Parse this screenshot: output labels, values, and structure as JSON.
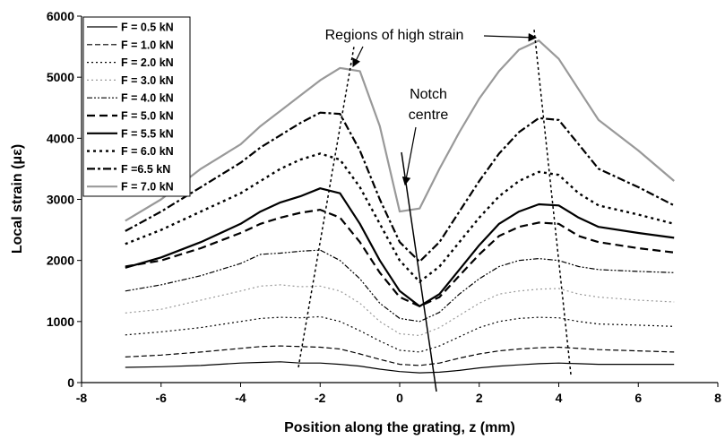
{
  "chart_data": {
    "type": "line",
    "xlabel": "Position along the grating, z (mm)",
    "ylabel": "Local strain (με)",
    "annotations": [
      "Regions of high strain",
      "Notch",
      "centre"
    ],
    "x": [
      -6.9,
      -6,
      -5,
      -4,
      -3.5,
      -3,
      -2.5,
      -2,
      -1.5,
      -1,
      -0.5,
      0,
      0.5,
      1,
      1.5,
      2,
      2.5,
      3,
      3.5,
      4,
      4.5,
      5,
      6,
      6.9
    ],
    "xlim": [
      -8,
      8
    ],
    "xticks": [
      -8,
      -6,
      -4,
      -2,
      0,
      2,
      4,
      6,
      8
    ],
    "ylim": [
      0,
      6000
    ],
    "yticks": [
      0,
      1000,
      2000,
      3000,
      4000,
      5000,
      6000
    ],
    "legend": "upper left",
    "series": [
      {
        "name": "F = 0.5 kN",
        "color": "#000000",
        "linestyle": "solid",
        "values": [
          250,
          260,
          280,
          320,
          330,
          340,
          320,
          320,
          300,
          270,
          220,
          180,
          160,
          170,
          200,
          240,
          270,
          290,
          310,
          320,
          310,
          300,
          300,
          300
        ]
      },
      {
        "name": "F = 1.0 kN",
        "color": "#000000",
        "linestyle": "dashed",
        "values": [
          420,
          450,
          500,
          560,
          590,
          600,
          590,
          580,
          550,
          470,
          380,
          300,
          280,
          320,
          400,
          470,
          520,
          550,
          570,
          580,
          560,
          540,
          520,
          500
        ]
      },
      {
        "name": "F = 2.0 kN",
        "color": "#000000",
        "linestyle": "dotted",
        "values": [
          780,
          830,
          900,
          1000,
          1050,
          1070,
          1060,
          1080,
          1000,
          850,
          680,
          530,
          500,
          600,
          750,
          900,
          1000,
          1050,
          1070,
          1060,
          1000,
          960,
          940,
          920
        ]
      },
      {
        "name": "F = 3.0 kN",
        "color": "#999999",
        "linestyle": "dotted",
        "values": [
          1140,
          1200,
          1350,
          1500,
          1580,
          1600,
          1570,
          1580,
          1500,
          1300,
          1000,
          800,
          770,
          900,
          1100,
          1300,
          1450,
          1500,
          1530,
          1540,
          1450,
          1400,
          1350,
          1320
        ]
      },
      {
        "name": "F = 4.0 kN",
        "color": "#000000",
        "linestyle": "dashdotdot",
        "values": [
          1500,
          1600,
          1750,
          1950,
          2100,
          2120,
          2150,
          2170,
          2000,
          1700,
          1300,
          1050,
          1000,
          1150,
          1450,
          1700,
          1900,
          2000,
          2030,
          2000,
          1900,
          1850,
          1820,
          1800
        ]
      },
      {
        "name": "F = 5.0 kN",
        "color": "#000000",
        "linestyle": "heavy-dashed",
        "values": [
          1900,
          2000,
          2200,
          2450,
          2600,
          2700,
          2780,
          2830,
          2700,
          2300,
          1800,
          1400,
          1250,
          1400,
          1750,
          2100,
          2400,
          2550,
          2620,
          2600,
          2400,
          2300,
          2200,
          2130
        ]
      },
      {
        "name": "F = 5.5 kN",
        "color": "#000000",
        "linestyle": "heavy-solid",
        "values": [
          1880,
          2050,
          2300,
          2600,
          2800,
          2950,
          3050,
          3180,
          3100,
          2600,
          2000,
          1500,
          1250,
          1450,
          1850,
          2250,
          2600,
          2800,
          2920,
          2900,
          2700,
          2550,
          2450,
          2370
        ]
      },
      {
        "name": "F = 6.0 kN",
        "color": "#000000",
        "linestyle": "heavy-dotted",
        "values": [
          2270,
          2500,
          2800,
          3100,
          3300,
          3500,
          3650,
          3750,
          3650,
          3200,
          2600,
          2000,
          1650,
          1900,
          2300,
          2700,
          3050,
          3300,
          3450,
          3400,
          3100,
          2900,
          2750,
          2600
        ]
      },
      {
        "name": "F =6.5 kN",
        "color": "#000000",
        "linestyle": "heavy-dashdot",
        "values": [
          2480,
          2800,
          3200,
          3600,
          3850,
          4050,
          4250,
          4420,
          4400,
          3800,
          3000,
          2300,
          1980,
          2300,
          2800,
          3300,
          3750,
          4100,
          4330,
          4300,
          3900,
          3500,
          3200,
          2900
        ]
      },
      {
        "name": "F = 7.0 kN",
        "color": "#999999",
        "linestyle": "heavy-solid",
        "values": [
          2650,
          3000,
          3500,
          3900,
          4200,
          4450,
          4700,
          4950,
          5150,
          5100,
          4200,
          2800,
          2850,
          3500,
          4100,
          4650,
          5100,
          5450,
          5600,
          5300,
          4800,
          4300,
          3800,
          3300
        ]
      }
    ]
  }
}
